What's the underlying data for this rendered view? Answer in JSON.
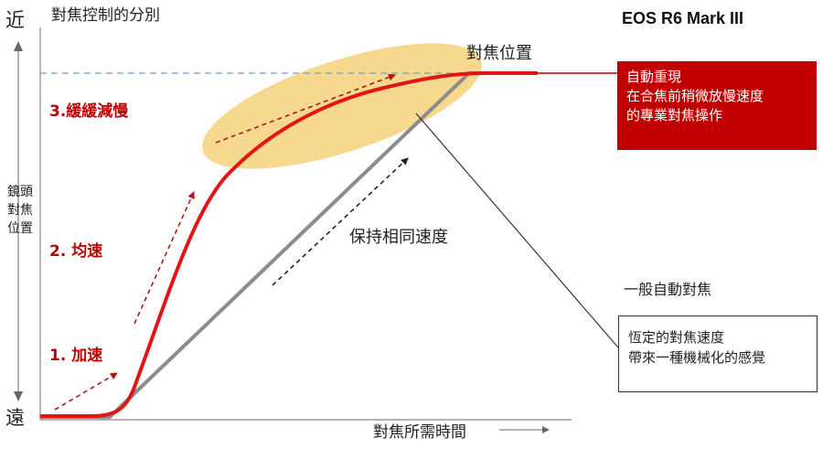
{
  "title": "對焦控制的分別",
  "y_axis": {
    "near": "近",
    "far": "遠",
    "label": "鏡頭對焦位置"
  },
  "x_axis": {
    "label": "對焦所需時間"
  },
  "stages": [
    {
      "label": "1. 加速"
    },
    {
      "label": "2. 均速"
    },
    {
      "label": "3.緩緩減慢"
    }
  ],
  "focus_target_label": "對焦位置",
  "constant_speed_label": "保持相同速度",
  "camera": {
    "model": "EOS R6 Mark III",
    "description_lines": [
      "自動重現",
      "在合焦前稍微放慢速度",
      "的專業對焦操作"
    ]
  },
  "conventional_af": {
    "label": "一般自動對焦",
    "description_lines": [
      "恆定的對焦速度",
      "帶來一種機械化的感覺"
    ]
  },
  "colors": {
    "accent_red": "#c00000",
    "curve_red": "#e21515",
    "linear_gray": "#8c8c8c",
    "highlight_yellow": "#f5d27a",
    "dashed_blue": "#6f9fd0"
  }
}
